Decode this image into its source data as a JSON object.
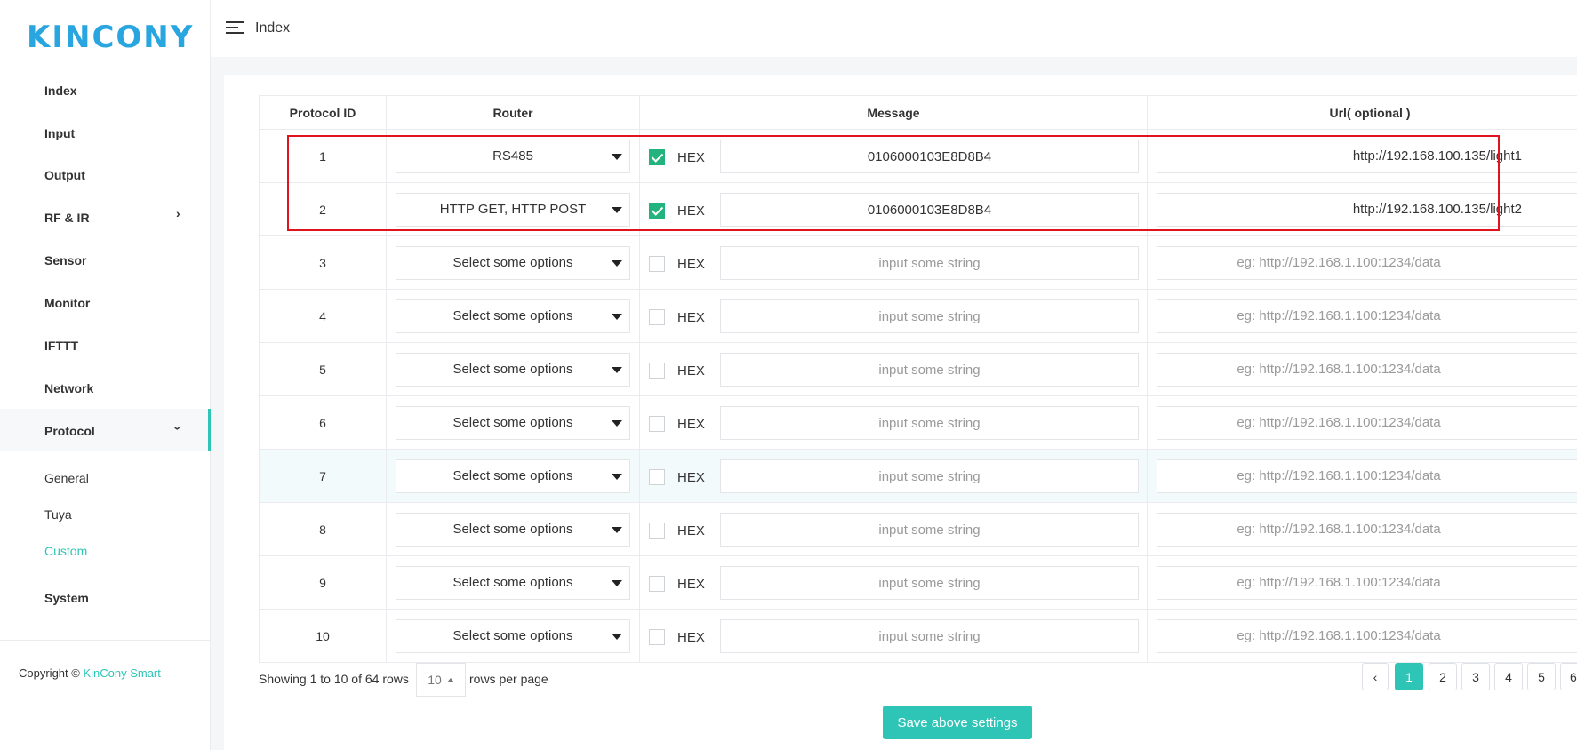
{
  "brand": {
    "logo": "KINCONY"
  },
  "sidebar": {
    "items": [
      {
        "label": "Index"
      },
      {
        "label": "Input"
      },
      {
        "label": "Output"
      },
      {
        "label": "RF & IR"
      },
      {
        "label": "Sensor"
      },
      {
        "label": "Monitor"
      },
      {
        "label": "IFTTT"
      },
      {
        "label": "Network"
      },
      {
        "label": "Protocol"
      },
      {
        "label": "System"
      }
    ],
    "protocol_sub": [
      {
        "label": "General"
      },
      {
        "label": "Tuya"
      },
      {
        "label": "Custom",
        "active": true
      }
    ],
    "copyright_prefix": "Copyright ©",
    "copyright_brand": "KinCony Smart"
  },
  "topbar": {
    "title": "Index"
  },
  "table": {
    "headers": [
      "Protocol ID",
      "Router",
      "Message",
      "Url( optional )"
    ],
    "hex_label": "HEX",
    "router_placeholder": "Select some options",
    "message_placeholder": "input some string",
    "url_placeholder": "eg: http://192.168.1.100:1234/data",
    "rows": [
      {
        "id": "1",
        "router": "RS485",
        "hex": true,
        "message": "0106000103E8D8B4",
        "url": "http://192.168.100.135/light1"
      },
      {
        "id": "2",
        "router": "HTTP GET, HTTP POST",
        "hex": true,
        "message": "0106000103E8D8B4",
        "url": "http://192.168.100.135/light2"
      },
      {
        "id": "3",
        "router": "",
        "hex": false,
        "message": "",
        "url": ""
      },
      {
        "id": "4",
        "router": "",
        "hex": false,
        "message": "",
        "url": ""
      },
      {
        "id": "5",
        "router": "",
        "hex": false,
        "message": "",
        "url": ""
      },
      {
        "id": "6",
        "router": "",
        "hex": false,
        "message": "",
        "url": ""
      },
      {
        "id": "7",
        "router": "",
        "hex": false,
        "message": "",
        "url": ""
      },
      {
        "id": "8",
        "router": "",
        "hex": false,
        "message": "",
        "url": ""
      },
      {
        "id": "9",
        "router": "",
        "hex": false,
        "message": "",
        "url": ""
      },
      {
        "id": "10",
        "router": "",
        "hex": false,
        "message": "",
        "url": ""
      }
    ]
  },
  "pagination": {
    "summary": "Showing 1 to 10 of 64 rows",
    "page_size": "10",
    "rows_per_page": "rows per page",
    "prev": "‹",
    "pages": [
      "1",
      "2",
      "3",
      "4",
      "5",
      "6"
    ],
    "current": "1"
  },
  "save_label": "Save above settings",
  "colors": {
    "accent": "#2ec4b6",
    "logo": "#29a5e0",
    "checkbox": "#23b37f",
    "highlight": "#e0141e"
  }
}
